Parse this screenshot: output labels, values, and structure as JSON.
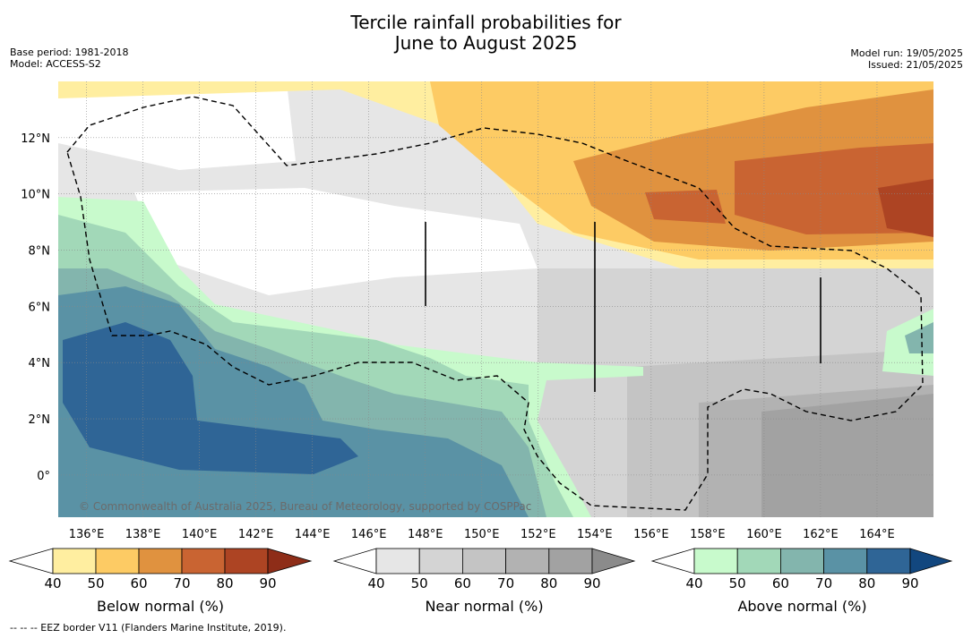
{
  "title": {
    "line1": "Tercile rainfall probabilities for",
    "line2": "June to August 2025"
  },
  "meta_left": {
    "base_period": "Base period: 1981-2018",
    "model": "Model: ACCESS-S2"
  },
  "meta_right": {
    "model_run": "Model run: 19/05/2025",
    "issued": "Issued: 21/05/2025"
  },
  "map": {
    "lon_range": [
      135,
      166
    ],
    "lat_range": [
      -1.5,
      14
    ],
    "lon_ticks": [
      "136°E",
      "138°E",
      "140°E",
      "142°E",
      "144°E",
      "146°E",
      "148°E",
      "150°E",
      "152°E",
      "154°E",
      "156°E",
      "158°E",
      "160°E",
      "162°E",
      "164°E"
    ],
    "lat_ticks": [
      "12°N",
      "10°N",
      "8°N",
      "6°N",
      "4°N",
      "2°N",
      "0°"
    ],
    "credit": "© Commonwealth of Australia 2025, Bureau of Meteorology, supported by COSPPac"
  },
  "colorbars": [
    {
      "label": "Below normal (%)",
      "ticks": [
        "40",
        "50",
        "60",
        "70",
        "80",
        "90"
      ],
      "colors": [
        "#ffeea0",
        "#fdcb64",
        "#e0923f",
        "#c96432",
        "#ad4423",
        "#8e2d18"
      ]
    },
    {
      "label": "Near normal (%)",
      "ticks": [
        "40",
        "50",
        "60",
        "70",
        "80",
        "90"
      ],
      "colors": [
        "#e6e6e6",
        "#d4d4d4",
        "#c4c4c4",
        "#b2b2b2",
        "#a2a2a2",
        "#8b8b8b"
      ]
    },
    {
      "label": "Above normal (%)",
      "ticks": [
        "40",
        "50",
        "60",
        "70",
        "80",
        "90"
      ],
      "colors": [
        "#c8facc",
        "#a2d8b8",
        "#83b5ad",
        "#5a92a5",
        "#2f6596",
        "#12477f"
      ]
    }
  ],
  "footnote": "--  --  -- EEZ border V11 (Flanders Marine Institute, 2019)."
}
